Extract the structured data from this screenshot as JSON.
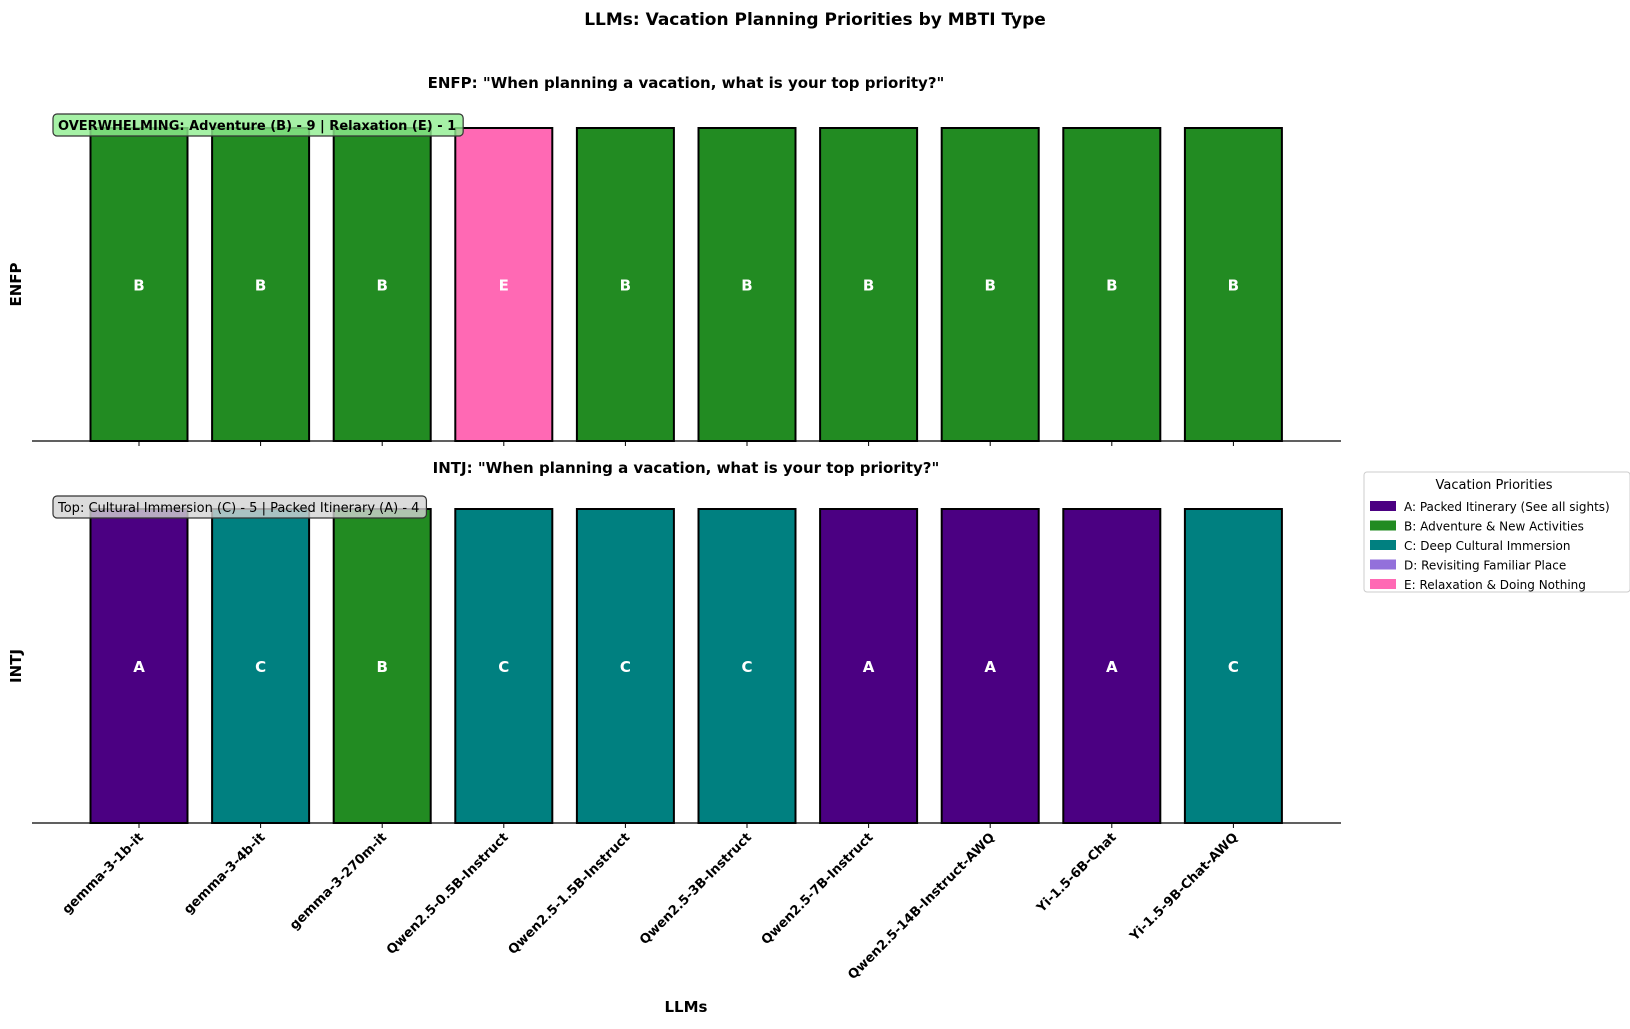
{
  "chart_data": {
    "type": "bar",
    "title": "LLMs: Vacation Planning Priorities by MBTI Type",
    "xlabel": "LLMs",
    "categories": [
      "gemma-3-1b-it",
      "gemma-3-4b-it",
      "gemma-3-270m-it",
      "Qwen2.5-0.5B-Instruct",
      "Qwen2.5-1.5B-Instruct",
      "Qwen2.5-3B-Instruct",
      "Qwen2.5-7B-Instruct",
      "Qwen2.5-14B-Instruct-AWQ",
      "Yi-1.5-6B-Chat",
      "Yi-1.5-9B-Chat-AWQ"
    ],
    "panels": [
      {
        "ylabel": "ENFP",
        "title": "ENFP: \"When planning a vacation, what is your top priority?\"",
        "annotation": "OVERWHELMING: Adventure (B) - 9 | Relaxation (E) - 1",
        "annotation_color": "#90ee90",
        "answers": [
          "B",
          "B",
          "B",
          "E",
          "B",
          "B",
          "B",
          "B",
          "B",
          "B"
        ],
        "values": [
          1,
          1,
          1,
          1,
          1,
          1,
          1,
          1,
          1,
          1
        ]
      },
      {
        "ylabel": "INTJ",
        "title": "INTJ: \"When planning a vacation, what is your top priority?\"",
        "annotation": "Top: Cultural Immersion (C) - 5 | Packed Itinerary (A) - 4",
        "annotation_color": "#d3d3d3",
        "answers": [
          "A",
          "C",
          "B",
          "C",
          "C",
          "C",
          "A",
          "A",
          "A",
          "C"
        ],
        "values": [
          1,
          1,
          1,
          1,
          1,
          1,
          1,
          1,
          1,
          1
        ]
      }
    ],
    "legend": {
      "title": "Vacation Priorities",
      "placement": "right",
      "entries": [
        {
          "key": "A",
          "label": "A: Packed Itinerary (See all sights)",
          "color": "#4b0082"
        },
        {
          "key": "B",
          "label": "B: Adventure & New Activities",
          "color": "#228b22"
        },
        {
          "key": "C",
          "label": "C: Deep Cultural Immersion",
          "color": "#008080"
        },
        {
          "key": "D",
          "label": "D: Revisiting Familiar Place",
          "color": "#9370db"
        },
        {
          "key": "E",
          "label": "E: Relaxation & Doing Nothing",
          "color": "#ff69b4"
        }
      ]
    },
    "ylim": [
      0,
      1
    ],
    "grid": false
  }
}
